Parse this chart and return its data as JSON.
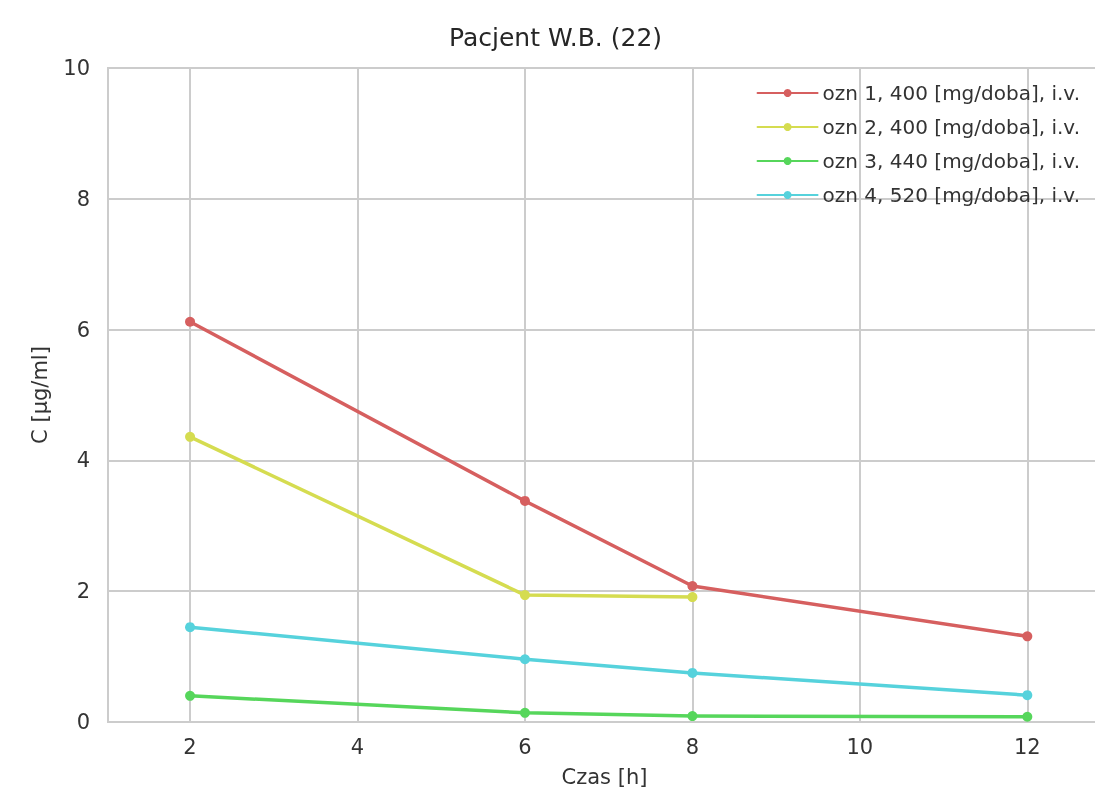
{
  "chart_data": {
    "type": "line",
    "title": "Pacjent W.B. (22)",
    "xlabel": "Czas [h]",
    "ylabel": "C [µg/ml]",
    "xlim": [
      1.02,
      12.88
    ],
    "xticks": [
      2,
      4,
      6,
      8,
      10,
      12
    ],
    "ylim": [
      0,
      10
    ],
    "yticks": [
      0,
      2,
      4,
      6,
      8,
      10
    ],
    "grid": true,
    "legend": "top right",
    "marker": "circle",
    "line_style": "solid",
    "series": [
      {
        "name": "ozn 1, 400 [mg/doba], i.v.",
        "color": "#d65f5f",
        "x": [
          2,
          6,
          8,
          12
        ],
        "values": [
          6.12,
          3.38,
          2.08,
          1.31
        ]
      },
      {
        "name": "ozn 2, 400 [mg/doba], i.v.",
        "color": "#d5dc50",
        "x": [
          2,
          6,
          8
        ],
        "values": [
          4.36,
          1.94,
          1.91
        ]
      },
      {
        "name": "ozn 3, 440 [mg/doba], i.v.",
        "color": "#56d65b",
        "x": [
          2,
          6,
          8,
          12
        ],
        "values": [
          0.4,
          0.14,
          0.09,
          0.08
        ]
      },
      {
        "name": "ozn 4, 520 [mg/doba], i.v.",
        "color": "#56d2dc",
        "x": [
          2,
          6,
          8,
          12
        ],
        "values": [
          1.45,
          0.96,
          0.75,
          0.41
        ]
      }
    ]
  }
}
